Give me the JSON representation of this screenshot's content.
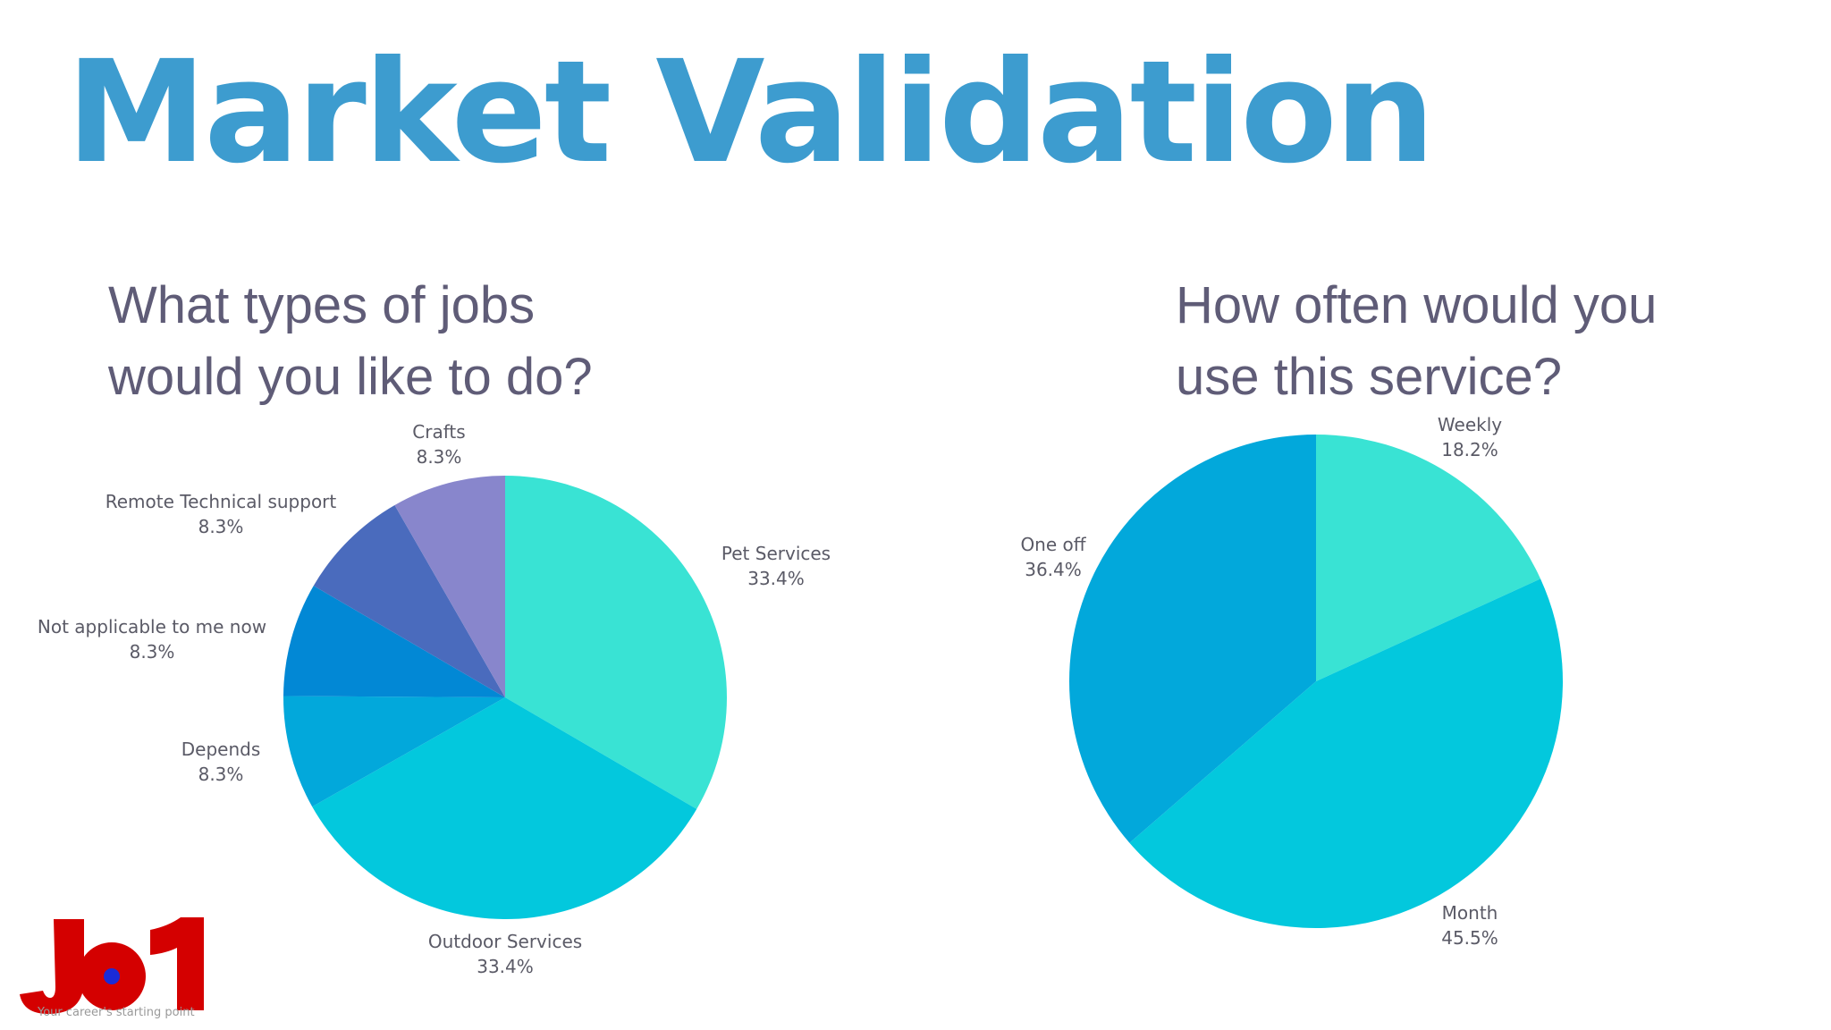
{
  "title": "Market Validation",
  "chart_data": [
    {
      "type": "pie",
      "title_lines": [
        "What types of jobs",
        "would you like to do?"
      ],
      "slices": [
        {
          "label": "Pet Services",
          "pct": "33.4%",
          "value": 33.4,
          "color": "#39e3d4"
        },
        {
          "label": "Outdoor Services",
          "pct": "33.4%",
          "value": 33.4,
          "color": "#03c8dd"
        },
        {
          "label": "Depends",
          "pct": "8.3%",
          "value": 8.3,
          "color": "#02a8db"
        },
        {
          "label": "Not applicable to me now",
          "pct": "8.3%",
          "value": 8.3,
          "color": "#0288d5"
        },
        {
          "label": "Remote Technical support",
          "pct": "8.3%",
          "value": 8.3,
          "color": "#4a6bbd"
        },
        {
          "label": "Crafts",
          "pct": "8.3%",
          "value": 8.3,
          "color": "#8886cc"
        }
      ]
    },
    {
      "type": "pie",
      "title_lines": [
        "How often would you",
        "use this service?"
      ],
      "slices": [
        {
          "label": "Weekly",
          "pct": "18.2%",
          "value": 18.2,
          "color": "#39e3d4"
        },
        {
          "label": "Month",
          "pct": "45.5%",
          "value": 45.5,
          "color": "#03c8dd"
        },
        {
          "label": "One off",
          "pct": "36.4%",
          "value": 36.4,
          "color": "#02a8db"
        }
      ]
    }
  ],
  "logo": {
    "text": "JO1",
    "tagline": "Your career's starting point",
    "primary_color": "#d40000",
    "dot_color": "#1a2bd8"
  }
}
